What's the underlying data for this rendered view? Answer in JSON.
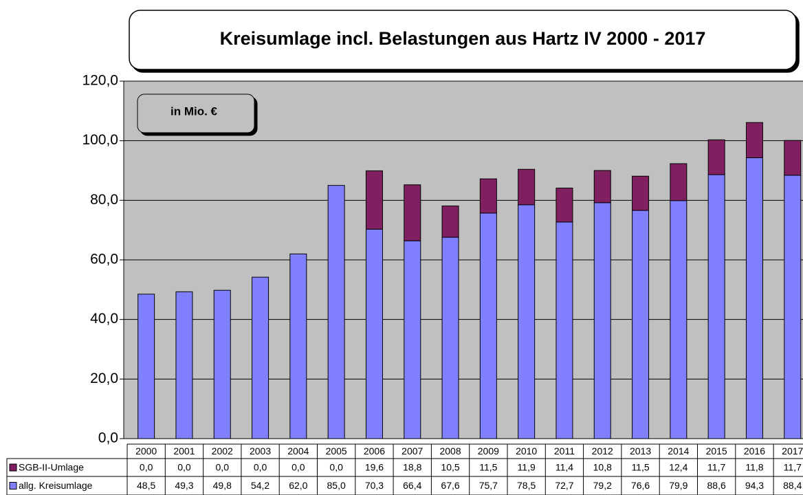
{
  "chart_data": {
    "type": "stacked_bar",
    "title": "Kreisumlage incl. Belastungen aus Hartz IV 2000 - 2017",
    "annotation": "in Mio. €",
    "categories": [
      "2000",
      "2001",
      "2002",
      "2003",
      "2004",
      "2005",
      "2006",
      "2007",
      "2008",
      "2009",
      "2010",
      "2011",
      "2012",
      "2013",
      "2014",
      "2015",
      "2016",
      "2017"
    ],
    "series": [
      {
        "name": "SGB-II-Umlage",
        "color": "#802060",
        "values": [
          0,
          0,
          0,
          0,
          0,
          0,
          19.6,
          18.8,
          10.5,
          11.5,
          11.9,
          11.4,
          10.8,
          11.5,
          12.4,
          11.7,
          11.8,
          11.7
        ],
        "value_labels": [
          "0,0",
          "0,0",
          "0,0",
          "0,0",
          "0,0",
          "0,0",
          "19,6",
          "18,8",
          "10,5",
          "11,5",
          "11,9",
          "11,4",
          "10,8",
          "11,5",
          "12,4",
          "11,7",
          "11,8",
          "11,7"
        ]
      },
      {
        "name": "allg. Kreisumlage",
        "color": "#8080ff",
        "values": [
          48.5,
          49.3,
          49.8,
          54.2,
          62.0,
          85.0,
          70.3,
          66.4,
          67.6,
          75.7,
          78.5,
          72.7,
          79.2,
          76.6,
          79.9,
          88.6,
          94.3,
          88.4
        ],
        "value_labels": [
          "48,5",
          "49,3",
          "49,8",
          "54,2",
          "62,0",
          "85,0",
          "70,3",
          "66,4",
          "67,6",
          "75,7",
          "78,5",
          "72,7",
          "79,2",
          "76,6",
          "79,9",
          "88,6",
          "94,3",
          "88,4"
        ]
      }
    ],
    "ylim": [
      0,
      120
    ],
    "yticks": [
      {
        "value": 0,
        "label": "0,0"
      },
      {
        "value": 20,
        "label": "20,0"
      },
      {
        "value": 40,
        "label": "40,0"
      },
      {
        "value": 60,
        "label": "60,0"
      },
      {
        "value": 80,
        "label": "80,0"
      },
      {
        "value": 100,
        "label": "100,0"
      },
      {
        "value": 120,
        "label": "120,0"
      }
    ],
    "grid": true
  }
}
